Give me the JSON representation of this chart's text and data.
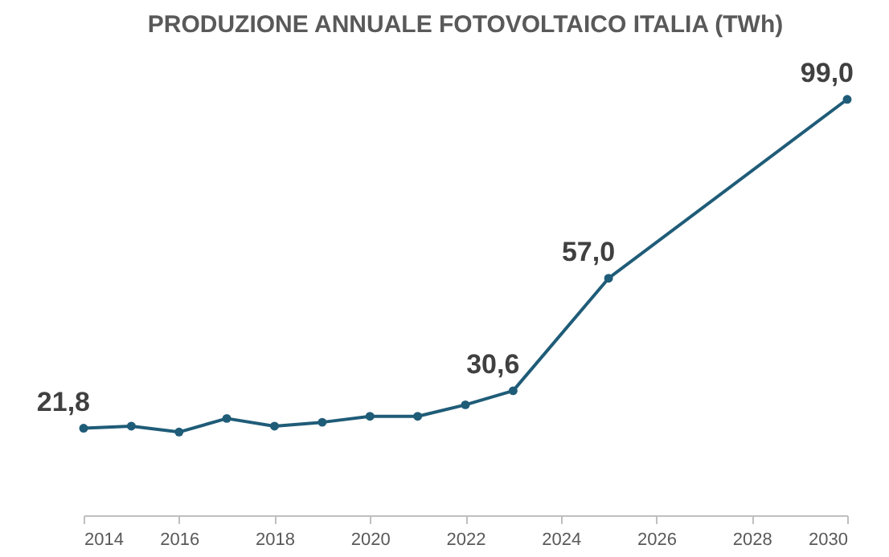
{
  "chart_data": {
    "type": "line",
    "title": "PRODUZIONE ANNUALE FOTOVOLTAICO ITALIA (TWh)",
    "x": [
      2014,
      2015,
      2016,
      2017,
      2018,
      2019,
      2020,
      2021,
      2022,
      2023,
      2025,
      2030
    ],
    "series": [
      {
        "color": "#1f5c78",
        "values": [
          21.8,
          22.3,
          20.9,
          24.1,
          22.3,
          23.2,
          24.6,
          24.6,
          27.3,
          30.6,
          57.0,
          99.0
        ],
        "value_labels": [
          "21,8",
          null,
          null,
          null,
          null,
          null,
          null,
          null,
          null,
          "30,6",
          "57,0",
          "99,0"
        ]
      }
    ],
    "xlim": [
      2014,
      2030
    ],
    "xticks": [
      2014,
      2016,
      2018,
      2020,
      2022,
      2024,
      2026,
      2028,
      2030
    ],
    "marker": "circle",
    "line_style": "solid"
  }
}
